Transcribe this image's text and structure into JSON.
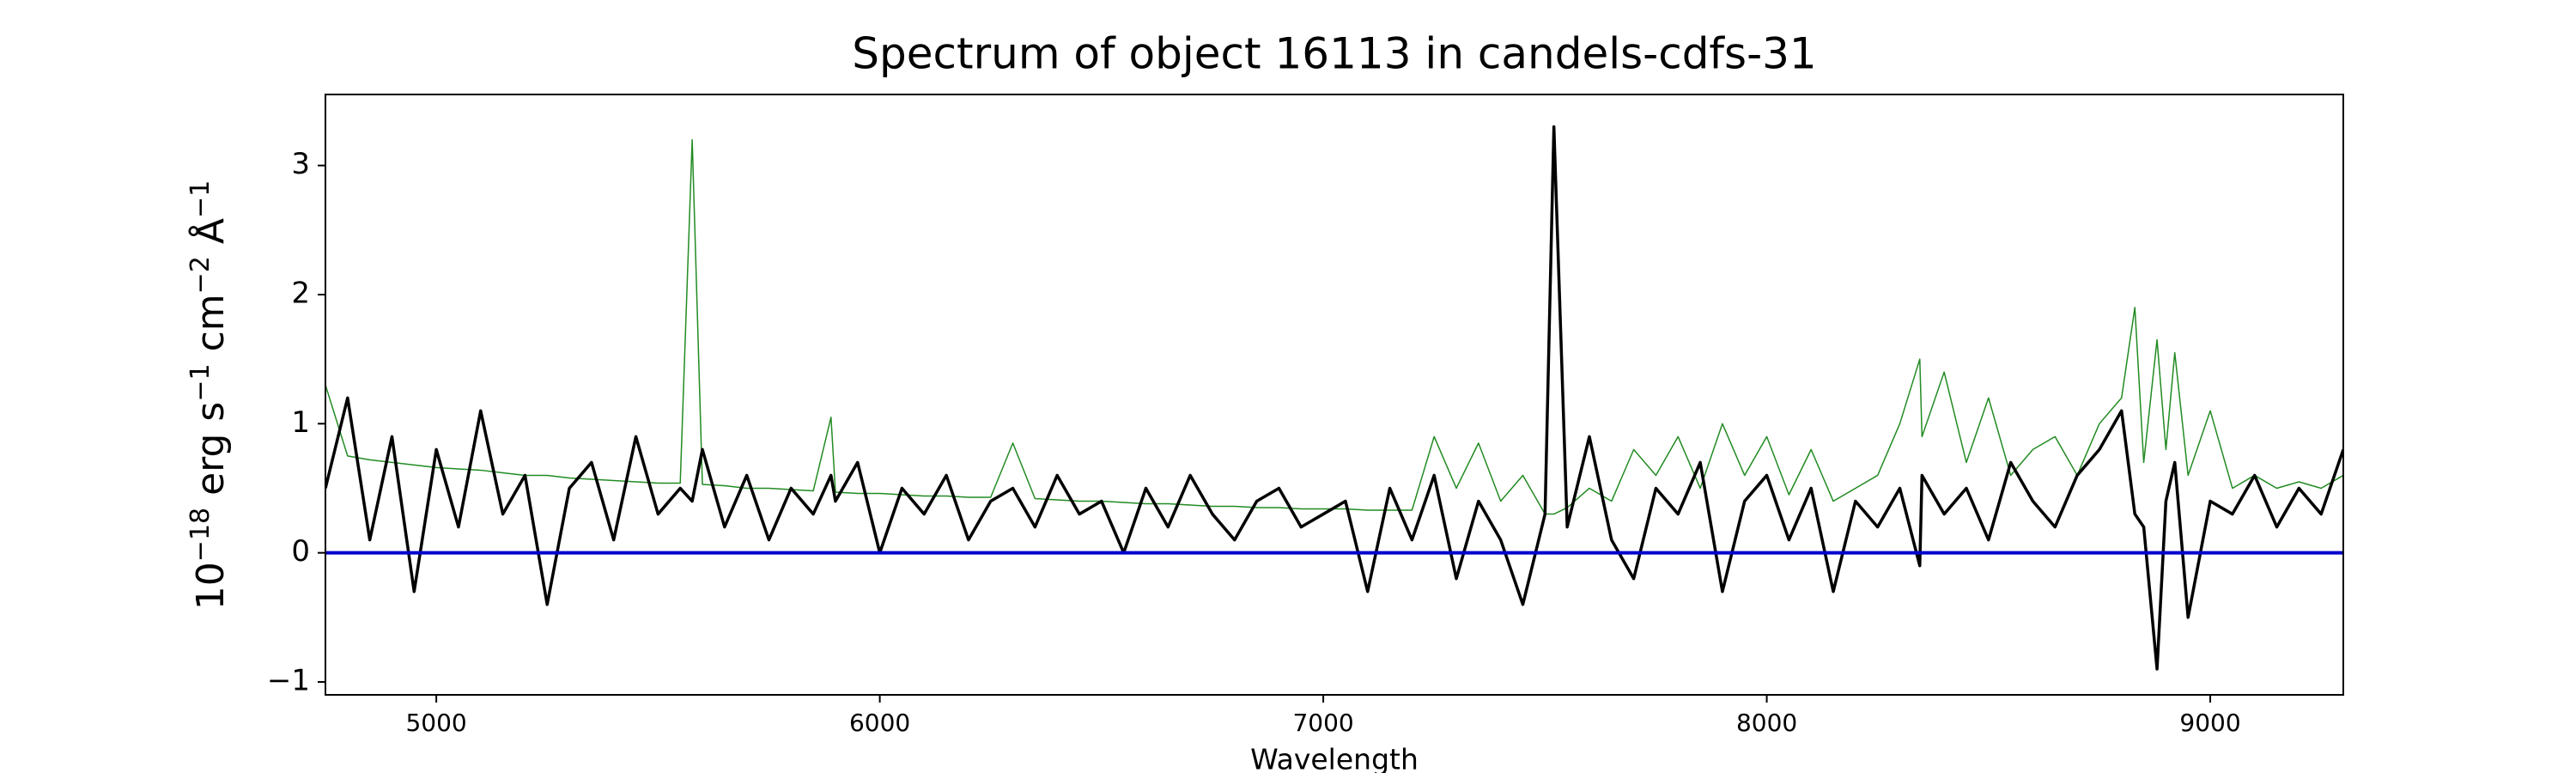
{
  "chart_data": {
    "type": "line",
    "title": "Spectrum of object 16113 in candels-cdfs-31",
    "xlabel": "Wavelength",
    "ylabel": [
      "10",
      "−18",
      " erg s",
      "−1",
      " cm",
      "−2",
      " Å",
      "−1"
    ],
    "x": [
      4750,
      4800,
      4850,
      4900,
      4950,
      5000,
      5050,
      5100,
      5150,
      5200,
      5250,
      5300,
      5350,
      5400,
      5450,
      5500,
      5550,
      5577,
      5600,
      5650,
      5700,
      5750,
      5800,
      5850,
      5890,
      5900,
      5950,
      6000,
      6050,
      6100,
      6150,
      6200,
      6250,
      6300,
      6350,
      6400,
      6450,
      6500,
      6550,
      6600,
      6650,
      6700,
      6750,
      6800,
      6850,
      6900,
      6950,
      7000,
      7050,
      7100,
      7150,
      7200,
      7250,
      7300,
      7350,
      7400,
      7450,
      7500,
      7520,
      7550,
      7600,
      7650,
      7700,
      7750,
      7800,
      7850,
      7900,
      7950,
      8000,
      8050,
      8100,
      8150,
      8200,
      8250,
      8300,
      8345,
      8350,
      8400,
      8450,
      8500,
      8550,
      8600,
      8650,
      8700,
      8750,
      8800,
      8830,
      8850,
      8880,
      8900,
      8920,
      8950,
      9000,
      9050,
      9100,
      9150,
      9200,
      9250,
      9300
    ],
    "series": [
      {
        "color": "#228b22",
        "width": 1.5,
        "values": [
          1.3,
          0.75,
          0.72,
          0.7,
          0.68,
          0.66,
          0.65,
          0.64,
          0.62,
          0.6,
          0.6,
          0.58,
          0.57,
          0.56,
          0.55,
          0.54,
          0.54,
          3.2,
          0.53,
          0.52,
          0.5,
          0.5,
          0.49,
          0.48,
          1.05,
          0.47,
          0.46,
          0.46,
          0.45,
          0.44,
          0.44,
          0.43,
          0.43,
          0.85,
          0.42,
          0.41,
          0.4,
          0.4,
          0.39,
          0.38,
          0.38,
          0.37,
          0.36,
          0.36,
          0.35,
          0.35,
          0.34,
          0.34,
          0.34,
          0.33,
          0.33,
          0.33,
          0.9,
          0.5,
          0.85,
          0.4,
          0.6,
          0.3,
          0.3,
          0.35,
          0.5,
          0.4,
          0.8,
          0.6,
          0.9,
          0.5,
          1.0,
          0.6,
          0.9,
          0.45,
          0.8,
          0.4,
          0.5,
          0.6,
          1.0,
          1.5,
          0.9,
          1.4,
          0.7,
          1.2,
          0.6,
          0.8,
          0.9,
          0.6,
          1.0,
          1.2,
          1.9,
          0.7,
          1.65,
          0.8,
          1.55,
          0.6,
          1.1,
          0.5,
          0.6,
          0.5,
          0.55,
          0.5,
          0.6
        ]
      },
      {
        "color": "#000000",
        "width": 3.5,
        "values": [
          0.5,
          1.2,
          0.1,
          0.9,
          -0.3,
          0.8,
          0.2,
          1.1,
          0.3,
          0.6,
          -0.4,
          0.5,
          0.7,
          0.1,
          0.9,
          0.3,
          0.5,
          0.4,
          0.8,
          0.2,
          0.6,
          0.1,
          0.5,
          0.3,
          0.6,
          0.4,
          0.7,
          0.0,
          0.5,
          0.3,
          0.6,
          0.1,
          0.4,
          0.5,
          0.2,
          0.6,
          0.3,
          0.4,
          0.0,
          0.5,
          0.2,
          0.6,
          0.3,
          0.1,
          0.4,
          0.5,
          0.2,
          0.3,
          0.4,
          -0.3,
          0.5,
          0.1,
          0.6,
          -0.2,
          0.4,
          0.1,
          -0.4,
          0.3,
          3.3,
          0.2,
          0.9,
          0.1,
          -0.2,
          0.5,
          0.3,
          0.7,
          -0.3,
          0.4,
          0.6,
          0.1,
          0.5,
          -0.3,
          0.4,
          0.2,
          0.5,
          -0.1,
          0.6,
          0.3,
          0.5,
          0.1,
          0.7,
          0.4,
          0.2,
          0.6,
          0.8,
          1.1,
          0.3,
          0.2,
          -0.9,
          0.4,
          0.7,
          -0.5,
          0.4,
          0.3,
          0.6,
          0.2,
          0.5,
          0.3,
          0.8
        ]
      }
    ],
    "hline": {
      "value": 0,
      "color": "#0000cc"
    },
    "xlim": [
      4750,
      9300
    ],
    "ylim": [
      -1.1,
      3.55
    ],
    "xticks": [
      5000,
      6000,
      7000,
      8000,
      9000
    ],
    "yticks": [
      {
        "value": -1,
        "label": "−1"
      },
      0,
      1,
      2,
      3
    ]
  }
}
